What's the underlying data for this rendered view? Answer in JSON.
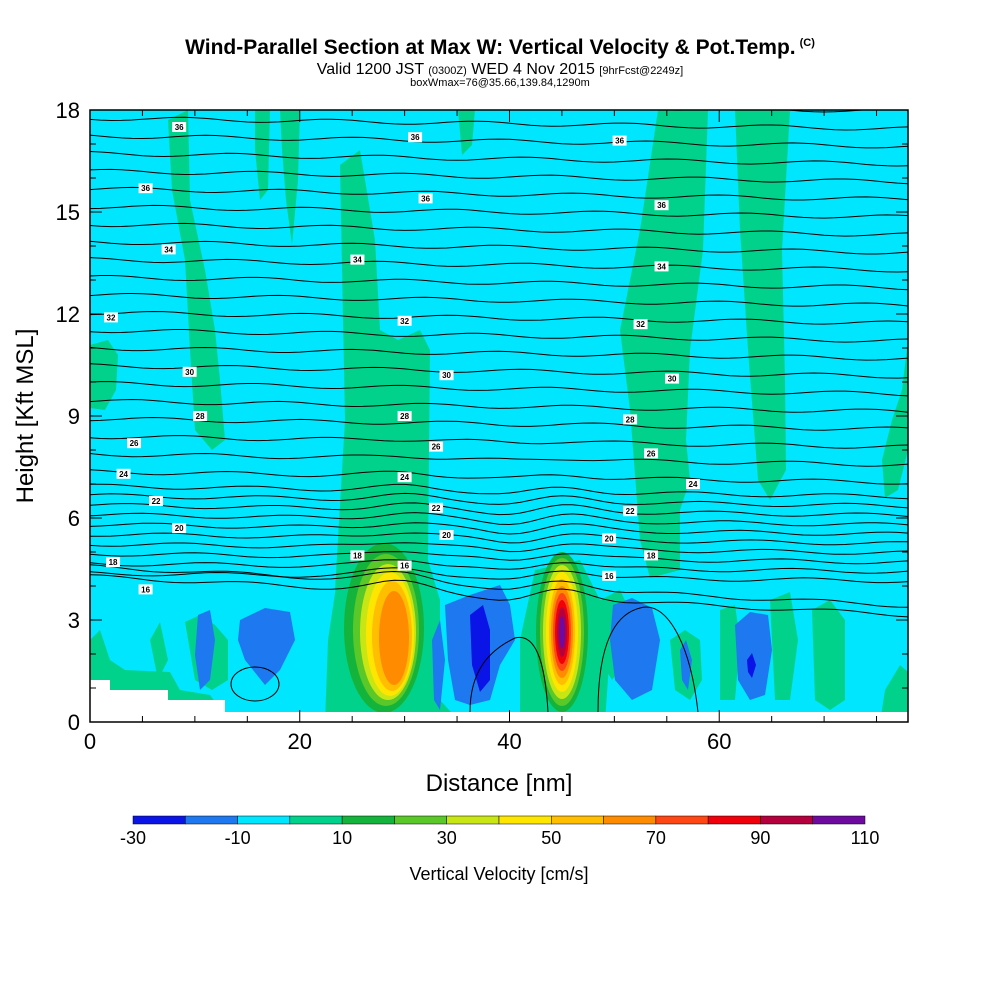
{
  "title": {
    "main": "Wind-Parallel Section at Max W: Vertical Velocity & Pot.Temp.",
    "copyright": "(C)",
    "valid_prefix": "Valid 1200 JST",
    "valid_utc": "(0300Z)",
    "valid_date": "WED 4 Nov 2015",
    "forecast": "[9hrFcst@2249z]",
    "box_info": "boxWmax=76@35.66,139.84,1290m"
  },
  "chart_data": {
    "type": "heatmap",
    "xlabel": "Distance [nm]",
    "ylabel": "Height [Kft MSL]",
    "xlim": [
      0,
      78
    ],
    "ylim": [
      0,
      18
    ],
    "x_ticks": [
      "0",
      "20",
      "40",
      "60"
    ],
    "y_ticks": [
      "0",
      "3",
      "6",
      "9",
      "12",
      "15",
      "18"
    ],
    "colorbar": {
      "label": "Vertical Velocity [cm/s]",
      "tick_labels": [
        "-30",
        "-10",
        "10",
        "30",
        "50",
        "70",
        "90",
        "110"
      ],
      "levels": [
        -30,
        -20,
        -10,
        0,
        10,
        20,
        30,
        40,
        50,
        60,
        70,
        80,
        90,
        100,
        110
      ],
      "colors": [
        "#0a14e6",
        "#1e78f0",
        "#00e6ff",
        "#00d28c",
        "#14b43c",
        "#5ac828",
        "#c8e614",
        "#ffe600",
        "#ffbe00",
        "#ff8c00",
        "#ff4614",
        "#f0000a",
        "#b4003c",
        "#6e0aa0"
      ]
    },
    "background_fill": "#00e6ff",
    "velocity_features": [
      {
        "x": 29.5,
        "y": 2.7,
        "peak_w": 70,
        "kind": "updraft"
      },
      {
        "x": 45.5,
        "y": 2.7,
        "peak_w": 110,
        "kind": "updraft"
      },
      {
        "x": 38.5,
        "y": 2.5,
        "peak_w": -30,
        "kind": "downdraft"
      },
      {
        "x": 63.8,
        "y": 1.7,
        "peak_w": -30,
        "kind": "downdraft"
      },
      {
        "x": 53,
        "y": 2.5,
        "peak_w": -20,
        "kind": "downdraft"
      },
      {
        "x": 18,
        "y": 2.3,
        "peak_w": -20,
        "kind": "downdraft"
      },
      {
        "x": 11,
        "y": 2.3,
        "peak_w": -20,
        "kind": "downdraft"
      }
    ],
    "contour_labels": [
      {
        "text": "36",
        "x": 8.5,
        "y": 17.5
      },
      {
        "text": "36",
        "x": 31,
        "y": 17.2
      },
      {
        "text": "36",
        "x": 50.5,
        "y": 17.1
      },
      {
        "text": "36",
        "x": 5.3,
        "y": 15.7
      },
      {
        "text": "36",
        "x": 32,
        "y": 15.4
      },
      {
        "text": "36",
        "x": 54.5,
        "y": 15.2
      },
      {
        "text": "34",
        "x": 7.5,
        "y": 13.9
      },
      {
        "text": "34",
        "x": 25.5,
        "y": 13.6
      },
      {
        "text": "34",
        "x": 54.5,
        "y": 13.4
      },
      {
        "text": "32",
        "x": 2,
        "y": 11.9
      },
      {
        "text": "32",
        "x": 30,
        "y": 11.8
      },
      {
        "text": "32",
        "x": 52.5,
        "y": 11.7
      },
      {
        "text": "30",
        "x": 9.5,
        "y": 10.3
      },
      {
        "text": "30",
        "x": 34,
        "y": 10.2
      },
      {
        "text": "30",
        "x": 55.5,
        "y": 10.1
      },
      {
        "text": "28",
        "x": 10.5,
        "y": 9.0
      },
      {
        "text": "28",
        "x": 30,
        "y": 9.0
      },
      {
        "text": "28",
        "x": 51.5,
        "y": 8.9
      },
      {
        "text": "26",
        "x": 4.2,
        "y": 8.2
      },
      {
        "text": "26",
        "x": 33,
        "y": 8.1
      },
      {
        "text": "26",
        "x": 53.5,
        "y": 7.9
      },
      {
        "text": "24",
        "x": 3.2,
        "y": 7.3
      },
      {
        "text": "24",
        "x": 30,
        "y": 7.2
      },
      {
        "text": "24",
        "x": 57.5,
        "y": 7.0
      },
      {
        "text": "22",
        "x": 6.3,
        "y": 6.5
      },
      {
        "text": "22",
        "x": 33,
        "y": 6.3
      },
      {
        "text": "22",
        "x": 51.5,
        "y": 6.2
      },
      {
        "text": "20",
        "x": 8.5,
        "y": 5.7
      },
      {
        "text": "20",
        "x": 34,
        "y": 5.5
      },
      {
        "text": "20",
        "x": 49.5,
        "y": 5.4
      },
      {
        "text": "18",
        "x": 2.2,
        "y": 4.7
      },
      {
        "text": "18",
        "x": 25.5,
        "y": 4.9
      },
      {
        "text": "18",
        "x": 53.5,
        "y": 4.9
      },
      {
        "text": "16",
        "x": 5.3,
        "y": 3.9
      },
      {
        "text": "16",
        "x": 30,
        "y": 4.6
      },
      {
        "text": "16",
        "x": 49.5,
        "y": 4.3
      }
    ]
  }
}
